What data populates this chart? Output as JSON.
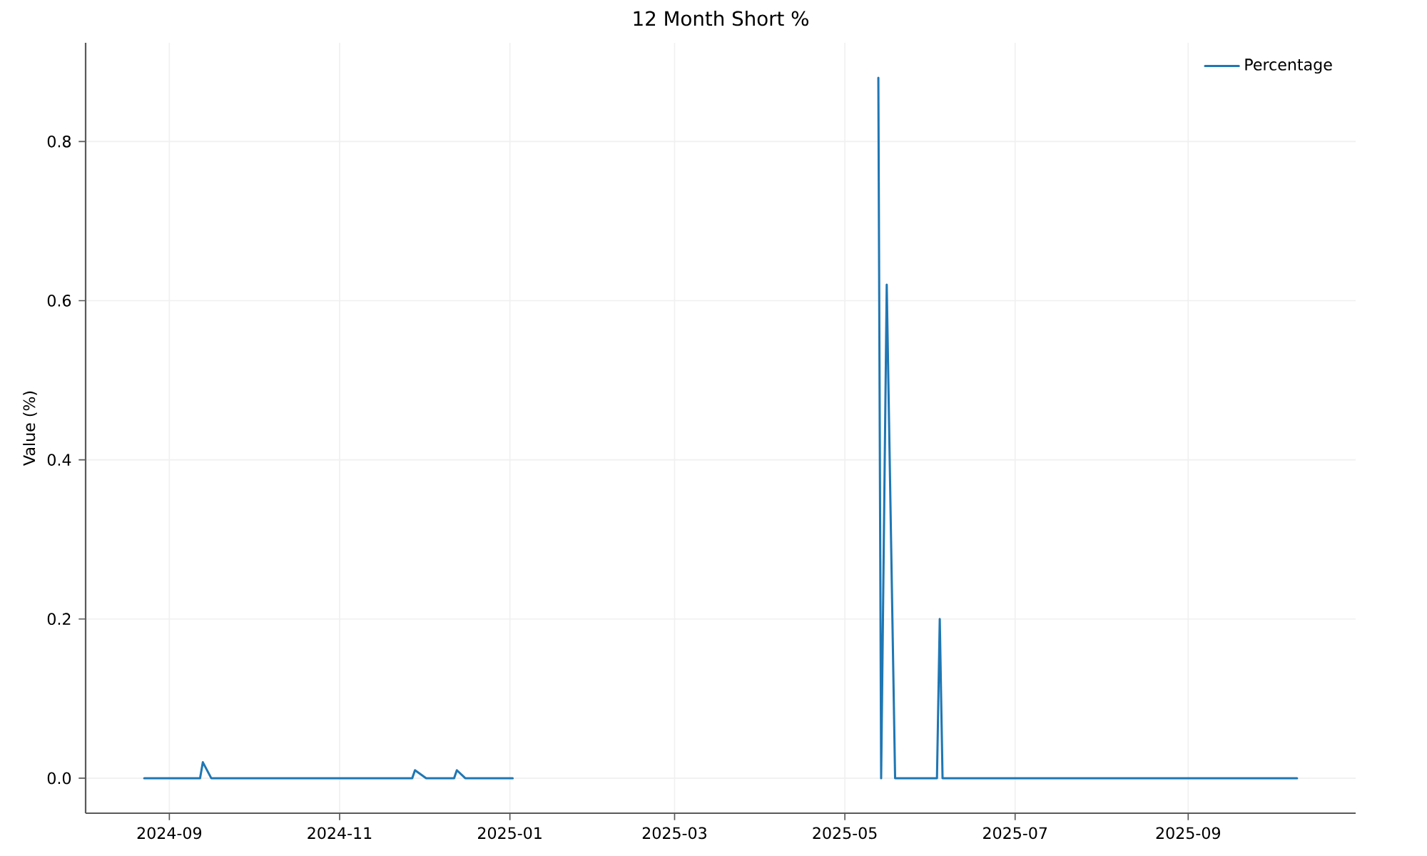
{
  "chart_data": {
    "type": "line",
    "title": "12 Month Short %",
    "ylabel": "Value (%)",
    "x": [
      "2024-08-23",
      "2024-09-12",
      "2024-09-13",
      "2024-09-16",
      "2024-11-27",
      "2024-11-28",
      "2024-12-02",
      "2024-12-12",
      "2024-12-13",
      "2024-12-16",
      "2025-01-02",
      "2025-03-01",
      "2025-05-13",
      "2025-05-14",
      "2025-05-16",
      "2025-05-19",
      "2025-06-03",
      "2025-06-04",
      "2025-06-05",
      "2025-10-10"
    ],
    "series": [
      {
        "name": "Percentage",
        "color": "#1f77b4",
        "values": [
          0,
          0,
          0.02,
          0,
          0,
          0.01,
          0,
          0,
          0.01,
          0,
          0,
          null,
          0.88,
          0,
          0.62,
          0,
          0,
          0.2,
          0,
          0
        ]
      }
    ],
    "xlim": [
      "2024-08-02",
      "2025-10-31"
    ],
    "ylim": [
      -0.044,
      0.924
    ],
    "xticks": [
      "2024-09",
      "2024-11",
      "2025-01",
      "2025-03",
      "2025-05",
      "2025-07",
      "2025-09"
    ],
    "yticks": [
      {
        "value": 0,
        "label": "0.0"
      },
      0.2,
      0.4,
      0.6,
      0.8
    ],
    "grid": true,
    "legend": "top right"
  }
}
